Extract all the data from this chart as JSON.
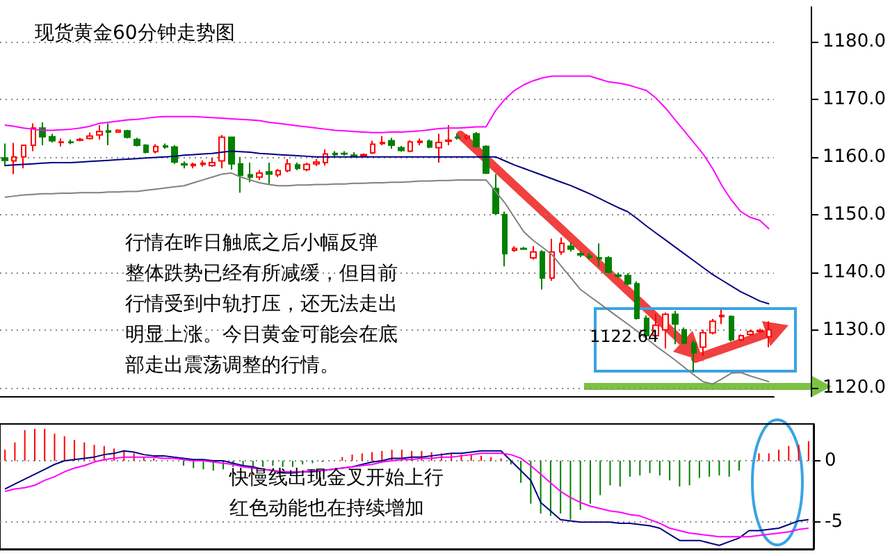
{
  "chart_data": [
    {
      "type": "candlestick",
      "title": "现货黄金60分钟走势图",
      "categories": [
        null,
        null,
        null,
        null,
        null,
        null,
        null,
        null,
        null,
        null,
        null,
        null,
        null,
        null,
        null,
        null,
        null,
        null,
        null,
        null,
        null,
        null,
        null,
        null,
        null,
        null,
        null,
        null,
        null,
        null,
        null,
        null,
        null,
        null,
        null,
        null,
        null,
        null,
        null,
        null,
        null,
        null,
        null,
        null,
        null,
        null,
        null,
        null,
        null,
        null,
        null,
        null,
        null,
        null,
        null,
        null,
        null,
        null,
        null,
        null,
        null,
        null,
        null,
        null,
        null,
        null,
        null,
        null,
        null,
        null,
        null,
        null,
        null,
        null,
        null,
        null,
        null,
        null,
        null,
        null,
        null,
        null
      ],
      "ohlc": [
        [
          1159.8,
          1162.3,
          1158.4,
          1159.4
        ],
        [
          1159.3,
          1162.4,
          1157.0,
          1160.0
        ],
        [
          1160.0,
          1162.0,
          1158.0,
          1162.0
        ],
        [
          1162.0,
          1165.8,
          1161.0,
          1165.0
        ],
        [
          1165.0,
          1166.0,
          1162.0,
          1163.5
        ],
        [
          1163.5,
          1164.0,
          1162.5,
          1162.8
        ],
        [
          1162.5,
          1163.2,
          1161.8,
          1162.6
        ],
        [
          1162.6,
          1163.0,
          1162.2,
          1162.5
        ],
        [
          1162.9,
          1163.3,
          1162.7,
          1163.0
        ],
        [
          1163.2,
          1164.2,
          1163.0,
          1163.6
        ],
        [
          1163.8,
          1165.5,
          1163.0,
          1164.4
        ],
        [
          1164.5,
          1165.8,
          1162.0,
          1164.3
        ],
        [
          1164.3,
          1164.8,
          1164.2,
          1164.6
        ],
        [
          1164.5,
          1164.7,
          1163.2,
          1163.4
        ],
        [
          1163.0,
          1163.3,
          1161.8,
          1162.0
        ],
        [
          1162.0,
          1162.2,
          1160.6,
          1160.8
        ],
        [
          1160.9,
          1162.2,
          1160.6,
          1161.8
        ],
        [
          1161.9,
          1162.3,
          1161.4,
          1161.7
        ],
        [
          1161.7,
          1162.0,
          1158.8,
          1159.1
        ],
        [
          1158.8,
          1159.2,
          1158.0,
          1158.6
        ],
        [
          1158.5,
          1159.0,
          1158.0,
          1158.7
        ],
        [
          1158.7,
          1159.4,
          1158.3,
          1158.9
        ],
        [
          1158.5,
          1159.8,
          1158.3,
          1159.0
        ],
        [
          1159.3,
          1163.8,
          1158.0,
          1163.4
        ],
        [
          1163.4,
          1163.5,
          1157.8,
          1158.8
        ],
        [
          1158.8,
          1160.0,
          1153.8,
          1156.8
        ],
        [
          1156.9,
          1159.0,
          1155.6,
          1156.5
        ],
        [
          1156.5,
          1157.7,
          1156.0,
          1157.2
        ],
        [
          1157.4,
          1159.0,
          1155.3,
          1157.0
        ],
        [
          1156.9,
          1157.9,
          1156.5,
          1157.6
        ],
        [
          1157.6,
          1159.6,
          1157.3,
          1158.8
        ],
        [
          1158.6,
          1159.0,
          1157.7,
          1158.0
        ],
        [
          1157.8,
          1159.0,
          1157.5,
          1158.7
        ],
        [
          1158.8,
          1159.6,
          1158.4,
          1159.1
        ],
        [
          1159.0,
          1161.3,
          1158.5,
          1160.5
        ],
        [
          1160.6,
          1161.0,
          1160.0,
          1160.4
        ],
        [
          1160.6,
          1161.0,
          1160.2,
          1160.5
        ],
        [
          1160.3,
          1160.8,
          1159.9,
          1160.2
        ],
        [
          1160.2,
          1160.6,
          1160.0,
          1160.4
        ],
        [
          1160.7,
          1162.8,
          1160.5,
          1162.2
        ],
        [
          1162.3,
          1163.6,
          1162.0,
          1162.5
        ],
        [
          1162.8,
          1163.3,
          1161.4,
          1162.0
        ],
        [
          1161.6,
          1161.9,
          1160.9,
          1161.1
        ],
        [
          1161.0,
          1162.9,
          1160.8,
          1162.6
        ],
        [
          1162.5,
          1163.2,
          1162.0,
          1162.7
        ],
        [
          1162.7,
          1163.0,
          1161.5,
          1161.7
        ],
        [
          1161.6,
          1164.0,
          1159.0,
          1162.5
        ],
        [
          1162.7,
          1165.5,
          1162.0,
          1162.9
        ],
        [
          1163.4,
          1164.0,
          1163.0,
          1163.3
        ],
        [
          1163.3,
          1163.9,
          1163.0,
          1163.6
        ],
        [
          1164.0,
          1164.3,
          1161.6,
          1161.8
        ],
        [
          1161.8,
          1162.0,
          1157.0,
          1157.2
        ],
        [
          1154.5,
          1157.0,
          1150.0,
          1150.2
        ],
        [
          1150.0,
          1150.5,
          1141.0,
          1143.2
        ],
        [
          1143.8,
          1144.5,
          1143.5,
          1144.1
        ],
        [
          1144.1,
          1144.4,
          1143.9,
          1144.0
        ],
        [
          1142.5,
          1144.5,
          1142.2,
          1143.5
        ],
        [
          1143.5,
          1143.8,
          1137.0,
          1139.0
        ],
        [
          1139.0,
          1145.8,
          1138.5,
          1143.5
        ],
        [
          1143.5,
          1146.0,
          1143.0,
          1145.0
        ],
        [
          1144.5,
          1145.2,
          1143.6,
          1144.0
        ],
        [
          1143.2,
          1143.6,
          1142.6,
          1143.0
        ],
        [
          1142.8,
          1143.3,
          1142.2,
          1142.6
        ],
        [
          1142.5,
          1145.0,
          1141.0,
          1142.3
        ],
        [
          1142.5,
          1142.8,
          1139.8,
          1140.0
        ],
        [
          1139.5,
          1139.9,
          1139.0,
          1139.3
        ],
        [
          1139.4,
          1139.8,
          1137.8,
          1138.0
        ],
        [
          1138.0,
          1138.4,
          1131.8,
          1132.0
        ],
        [
          1132.0,
          1132.5,
          1128.3,
          1129.0
        ],
        [
          1129.0,
          1132.8,
          1128.5,
          1130.8
        ],
        [
          1130.0,
          1133.0,
          1126.8,
          1132.7
        ],
        [
          1132.7,
          1133.3,
          1127.5,
          1131.0
        ],
        [
          1130.0,
          1130.4,
          1127.5,
          1127.7
        ],
        [
          1127.7,
          1128.2,
          1122.64,
          1126.0
        ],
        [
          1127.0,
          1130.0,
          1125.5,
          1129.5
        ],
        [
          1129.5,
          1131.9,
          1129.2,
          1131.5
        ],
        [
          1132.3,
          1133.5,
          1131.0,
          1132.5
        ],
        [
          1132.3,
          1132.5,
          1128.0,
          1128.3
        ],
        [
          1128.3,
          1129.2,
          1128.0,
          1129.0
        ],
        [
          1129.2,
          1130.0,
          1129.0,
          1129.7
        ],
        [
          1129.7,
          1130.2,
          1129.5,
          1129.9
        ],
        [
          1128.8,
          1131.5,
          1127.0,
          1130.0
        ]
      ],
      "colors": [
        "#008000",
        "#ff0000",
        "#ff0000",
        "#ff0000",
        "#008000",
        "#008000",
        "#ff0000",
        "#008000",
        "#ff0000",
        "#ff0000",
        "#ff0000",
        "#008000",
        "#ff0000",
        "#008000",
        "#008000",
        "#008000",
        "#ff0000",
        "#008000",
        "#008000",
        "#008000",
        "#ff0000",
        "#ff0000",
        "#ff0000",
        "#ff0000",
        "#008000",
        "#008000",
        "#008000",
        "#ff0000",
        "#008000",
        "#ff0000",
        "#ff0000",
        "#008000",
        "#ff0000",
        "#ff0000",
        "#ff0000",
        "#008000",
        "#008000",
        "#008000",
        "#ff0000",
        "#ff0000",
        "#ff0000",
        "#008000",
        "#008000",
        "#ff0000",
        "#ff0000",
        "#008000",
        "#ff0000",
        "#ff0000",
        "#008000",
        "#ff0000",
        "#008000",
        "#008000",
        "#008000",
        "#008000",
        "#ff0000",
        "#008000",
        "#ff0000",
        "#008000",
        "#ff0000",
        "#ff0000",
        "#008000",
        "#008000",
        "#008000",
        "#008000",
        "#008000",
        "#008000",
        "#008000",
        "#008000",
        "#008000",
        "#ff0000",
        "#ff0000",
        "#008000",
        "#008000",
        "#008000",
        "#ff0000",
        "#ff0000",
        "#ff0000",
        "#008000",
        "#ff0000",
        "#ff0000",
        "#ff0000",
        "#ff0000"
      ],
      "series": [
        {
          "type": "line",
          "color": "#ff00ff",
          "values": [
            1165.5,
            1165.3,
            1165.0,
            1164.8,
            1164.6,
            1164.6,
            1164.7,
            1164.8,
            1165.0,
            1165.3,
            1165.8,
            1166.0,
            1166.2,
            1166.4,
            1166.5,
            1166.7,
            1166.9,
            1167.0,
            1167.0,
            1167.0,
            1167.0,
            1166.9,
            1166.8,
            1166.7,
            1166.6,
            1166.5,
            1166.4,
            1166.3,
            1166.0,
            1165.8,
            1165.6,
            1165.4,
            1165.2,
            1165.0,
            1164.8,
            1164.6,
            1164.5,
            1164.4,
            1164.3,
            1164.2,
            1164.2,
            1164.3,
            1164.3,
            1164.4,
            1164.5,
            1164.7,
            1164.9,
            1165.0,
            1165.0,
            1165.1,
            1165.2,
            1165.2,
            1168.0,
            1170.0,
            1171.5,
            1172.5,
            1173.2,
            1173.7,
            1174.0,
            1174.0,
            1174.0,
            1174.0,
            1174.0,
            1173.5,
            1173.0,
            1172.8,
            1172.5,
            1172.0,
            1171.5,
            1170.2,
            1168.5,
            1166.5,
            1164.5,
            1162.5,
            1160.5,
            1158.0,
            1155.0,
            1152.5,
            1150.5,
            1149.5,
            1149.0,
            1147.5
          ]
        },
        {
          "type": "line",
          "color": "#000080",
          "values": [
            1158.5,
            1158.6,
            1158.7,
            1158.8,
            1158.9,
            1159.0,
            1159.0,
            1159.0,
            1159.1,
            1159.2,
            1159.3,
            1159.4,
            1159.5,
            1159.6,
            1159.7,
            1159.8,
            1159.9,
            1160.0,
            1160.1,
            1160.3,
            1160.4,
            1160.5,
            1160.6,
            1160.8,
            1161.0,
            1160.9,
            1160.8,
            1160.6,
            1160.5,
            1160.4,
            1160.3,
            1160.2,
            1160.1,
            1160.0,
            1160.0,
            1160.0,
            1160.0,
            1160.0,
            1160.0,
            1160.0,
            1160.0,
            1160.0,
            1160.0,
            1160.0,
            1160.0,
            1160.0,
            1160.0,
            1160.0,
            1160.0,
            1160.0,
            1160.0,
            1160.0,
            1160.0,
            1159.3,
            1158.6,
            1158.0,
            1157.4,
            1156.8,
            1156.2,
            1155.6,
            1155.0,
            1154.3,
            1153.6,
            1152.8,
            1152.0,
            1151.2,
            1150.5,
            1149.3,
            1148.0,
            1146.8,
            1145.6,
            1144.4,
            1143.2,
            1142.0,
            1140.8,
            1139.6,
            1138.6,
            1137.6,
            1136.6,
            1135.8,
            1135.0,
            1134.5
          ]
        },
        {
          "type": "line",
          "color": "#808080",
          "values": [
            1153.0,
            1153.2,
            1153.4,
            1153.5,
            1153.6,
            1153.6,
            1153.7,
            1153.7,
            1153.8,
            1153.8,
            1153.8,
            1153.9,
            1153.9,
            1154.0,
            1154.0,
            1154.2,
            1154.4,
            1154.6,
            1154.8,
            1155.0,
            1155.5,
            1156.0,
            1156.5,
            1157.0,
            1157.2,
            1156.5,
            1156.0,
            1155.5,
            1155.2,
            1155.0,
            1155.0,
            1155.1,
            1155.1,
            1155.2,
            1155.2,
            1155.3,
            1155.3,
            1155.4,
            1155.4,
            1155.5,
            1155.5,
            1155.6,
            1155.6,
            1155.7,
            1155.8,
            1155.8,
            1155.9,
            1155.9,
            1156.0,
            1156.0,
            1156.0,
            1156.0,
            1154.0,
            1152.0,
            1149.5,
            1147.0,
            1145.5,
            1144.3,
            1143.0,
            1141.0,
            1139.0,
            1137.0,
            1135.8,
            1134.6,
            1133.4,
            1132.2,
            1131.0,
            1129.8,
            1128.5,
            1127.2,
            1126.0,
            1124.8,
            1123.5,
            1122.2,
            1121.0,
            1120.6,
            1121.5,
            1122.5,
            1122.6,
            1122.0,
            1121.5,
            1121.0
          ]
        }
      ],
      "ylim": [
        1118.5,
        1186
      ],
      "yticks": [
        {
          "value": 1120,
          "label": "1120.0"
        },
        {
          "value": 1130,
          "label": "1130.0"
        },
        {
          "value": 1140,
          "label": "1140.0"
        },
        {
          "value": 1150,
          "label": "1150.0"
        },
        {
          "value": 1160,
          "label": "1160.0"
        },
        {
          "value": 1170,
          "label": "1170.0"
        },
        {
          "value": 1180,
          "label": "1180.0"
        }
      ],
      "grid": "y",
      "tick_labels": "y",
      "annotations": [
        "行情在昨日触底之后小幅反弹",
        "整体跌势已经有所减缓，但目前",
        "行情受到中轨打压，还无法走出",
        "明显上涨。今日黄金可能会在底",
        "部走出震荡调整的行情。",
        "1122.64"
      ]
    },
    {
      "type": "bar",
      "categories": [
        null,
        null,
        null,
        null,
        null,
        null,
        null,
        null,
        null,
        null,
        null,
        null,
        null,
        null,
        null,
        null,
        null,
        null,
        null,
        null,
        null,
        null,
        null,
        null,
        null,
        null,
        null,
        null,
        null,
        null,
        null,
        null,
        null,
        null,
        null,
        null,
        null,
        null,
        null,
        null,
        null,
        null,
        null,
        null,
        null,
        null,
        null,
        null,
        null,
        null,
        null,
        null,
        null,
        null,
        null,
        null,
        null,
        null,
        null,
        null,
        null,
        null,
        null,
        null,
        null,
        null,
        null,
        null,
        null,
        null,
        null,
        null,
        null,
        null,
        null,
        null,
        null,
        null,
        null,
        null,
        null,
        null
      ],
      "series": [
        {
          "values": [
            0.9,
            1.5,
            2.5,
            2.6,
            2.6,
            2.2,
            2.0,
            1.7,
            1.5,
            1.3,
            1.2,
            1.0,
            0.8,
            0.6,
            0.3,
            0.2,
            null,
            0,
            -0.4,
            -0.6,
            -0.7,
            -0.8,
            -0.7,
            -0.5,
            -0.5,
            -0.6,
            -0.5,
            -0.4,
            -0.5,
            -0.5,
            -0.3,
            -0.2,
            -0.1,
            null,
            0.3,
            0.5,
            0.6,
            0.7,
            0.8,
            0.9,
            0.9,
            0.8,
            0.8,
            0.7,
            0.6,
            0.6,
            0.5,
            0.5,
            0.4,
            0.3,
            0.2,
            -0.3,
            -1.8,
            -3.5,
            -4.3,
            -4.5,
            -4.3,
            -4.8,
            -4.0,
            -3.5,
            -2.8,
            -2.0,
            -2.1,
            -1.3,
            -1.2,
            -1.0,
            -1.2,
            -1.6,
            -2.1,
            -2.0,
            -1.4,
            -1.3,
            -1.2,
            -1.3,
            -0.8,
            null,
            0.6,
            0.6,
            0.9,
            1.2,
            1.3,
            1.6
          ],
          "colors": [
            "#ff0000",
            "#ff0000",
            "#ff0000",
            "#ff0000",
            "#ff0000",
            "#ff0000",
            "#ff0000",
            "#ff0000",
            "#ff0000",
            "#ff0000",
            "#ff0000",
            "#ff0000",
            "#ff0000",
            "#ff0000",
            "#ff0000",
            "#ff0000",
            "#ff0000",
            "#ff0000",
            "#008000",
            "#008000",
            "#008000",
            "#008000",
            "#008000",
            "#008000",
            "#008000",
            "#008000",
            "#008000",
            "#008000",
            "#008000",
            "#008000",
            "#008000",
            "#008000",
            "#008000",
            "#ff0000",
            "#ff0000",
            "#ff0000",
            "#ff0000",
            "#ff0000",
            "#ff0000",
            "#ff0000",
            "#ff0000",
            "#ff0000",
            "#ff0000",
            "#ff0000",
            "#ff0000",
            "#ff0000",
            "#ff0000",
            "#ff0000",
            "#ff0000",
            "#ff0000",
            "#ff0000",
            "#008000",
            "#008000",
            "#008000",
            "#008000",
            "#008000",
            "#008000",
            "#008000",
            "#008000",
            "#008000",
            "#008000",
            "#008000",
            "#008000",
            "#008000",
            "#008000",
            "#008000",
            "#008000",
            "#008000",
            "#008000",
            "#008000",
            "#008000",
            "#008000",
            "#008000",
            "#008000",
            "#008000",
            "#ff0000",
            "#ff0000",
            "#ff0000",
            "#ff0000",
            "#ff0000",
            "#ff0000",
            "#ff0000"
          ]
        },
        {
          "type": "line",
          "color": "#000080",
          "values": [
            -2.3,
            -1.9,
            -1.5,
            -1.1,
            -0.7,
            -0.3,
            0.0,
            0.1,
            0.2,
            0.3,
            0.5,
            0.6,
            0.8,
            0.7,
            0.5,
            0.4,
            0.4,
            0.3,
            0.2,
            0.1,
            0.1,
            0.0,
            0.0,
            -0.2,
            -0.4,
            -0.5,
            -0.7,
            -0.8,
            -1.0,
            -1.0,
            -0.9,
            -0.9,
            -0.8,
            -0.7,
            -0.6,
            -0.5,
            -0.3,
            -0.1,
            0.0,
            0.2,
            0.2,
            0.3,
            0.3,
            0.4,
            0.5,
            0.6,
            0.6,
            0.7,
            0.8,
            0.8,
            0.8,
            0.0,
            -0.8,
            -1.6,
            -3.4,
            -4.1,
            -4.8,
            -4.9,
            -5.0,
            -5.0,
            -5.0,
            -5.0,
            -5.1,
            -5.1,
            -5.2,
            -5.3,
            -5.5,
            -6.0,
            -6.5,
            -6.5,
            -6.5,
            -6.7,
            -6.9,
            -6.6,
            -6.3,
            -5.7,
            -5.7,
            -5.6,
            -5.5,
            -5.2,
            -4.9,
            -4.8
          ]
        },
        {
          "type": "line",
          "color": "#ff00ff",
          "values": [
            -2.5,
            -2.3,
            -2.2,
            -2.0,
            -1.6,
            -1.3,
            -0.9,
            -0.6,
            -0.4,
            -0.1,
            0.1,
            0.2,
            0.3,
            0.3,
            0.3,
            0.3,
            0.2,
            0.2,
            0.1,
            0.0,
            0.0,
            -0.1,
            -0.2,
            -0.3,
            -0.5,
            -0.6,
            -0.7,
            -0.8,
            -0.9,
            -0.9,
            -0.9,
            -0.8,
            -0.8,
            -0.7,
            -0.6,
            -0.5,
            -0.4,
            -0.3,
            -0.1,
            0.0,
            0.1,
            0.1,
            0.2,
            0.2,
            0.3,
            0.3,
            0.4,
            0.5,
            0.6,
            0.6,
            0.6,
            0.5,
            0.2,
            -0.4,
            -1.1,
            -1.8,
            -2.5,
            -3.0,
            -3.4,
            -3.7,
            -3.9,
            -4.1,
            -4.2,
            -4.4,
            -4.5,
            -4.8,
            -5.1,
            -5.5,
            -5.7,
            -5.9,
            -6.0,
            -6.1,
            -6.2,
            -6.2,
            -6.2,
            -6.2,
            -6.1,
            -6.0,
            -5.9,
            -5.8,
            -5.6,
            -5.5
          ]
        }
      ],
      "ylim": [
        -7.2,
        3
      ],
      "yticks": [
        0,
        -5
      ],
      "grid": "y",
      "tick_labels": "y",
      "annotations": [
        "快慢线出现金叉开始上行",
        "红色动能也在持续增加"
      ]
    }
  ]
}
